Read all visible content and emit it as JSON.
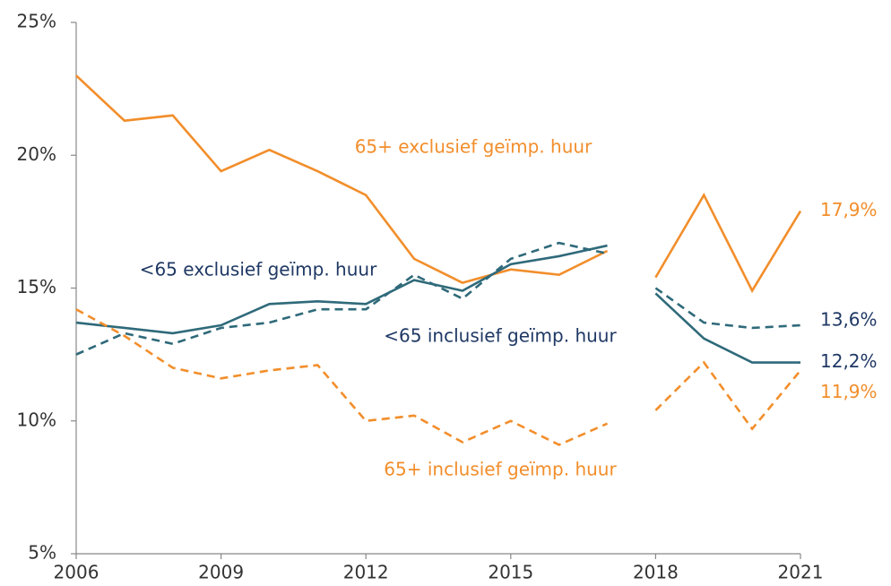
{
  "chart_data": {
    "type": "line",
    "x": [
      2006,
      2007,
      2008,
      2009,
      2010,
      2011,
      2012,
      2013,
      2014,
      2015,
      2016,
      2017,
      2018,
      2019,
      2020,
      2021
    ],
    "break_after": 2017,
    "xlim": [
      2006,
      2021
    ],
    "xticks": [
      2006,
      2009,
      2012,
      2015,
      2018,
      2021
    ],
    "ylim": [
      5,
      25
    ],
    "yticks": [
      {
        "value": 5,
        "label": "5%"
      },
      {
        "value": 10,
        "label": "10%"
      },
      {
        "value": 15,
        "label": "15%"
      },
      {
        "value": 20,
        "label": "20%"
      },
      {
        "value": 25,
        "label": "25%"
      }
    ],
    "series": [
      {
        "name": "65+ exclusief geïmp. huur",
        "color": "#f28e2b",
        "dash": false,
        "label_color": "#f28e2b",
        "values": [
          23.0,
          21.3,
          21.5,
          19.4,
          20.2,
          19.4,
          18.5,
          16.1,
          15.2,
          15.7,
          15.5,
          16.4,
          15.4,
          18.5,
          14.9,
          17.9
        ],
        "value_labels": [
          null,
          null,
          null,
          null,
          null,
          null,
          null,
          null,
          null,
          null,
          null,
          null,
          null,
          null,
          null,
          "17,9%"
        ]
      },
      {
        "name": "<65 exclusief geïmp. huur",
        "color": "#2f6a7a",
        "dash": false,
        "label_color": "#1f3864",
        "values": [
          13.7,
          13.5,
          13.3,
          13.6,
          14.4,
          14.5,
          14.4,
          15.3,
          14.9,
          15.9,
          16.2,
          16.6,
          14.8,
          13.1,
          12.2,
          12.2
        ],
        "value_labels": [
          null,
          null,
          null,
          null,
          null,
          null,
          null,
          null,
          null,
          null,
          null,
          null,
          null,
          null,
          null,
          "12,2%"
        ]
      },
      {
        "name": "<65 inclusief geïmp. huur",
        "color": "#2f6a7a",
        "dash": true,
        "label_color": "#1f3864",
        "values": [
          12.5,
          13.3,
          12.9,
          13.5,
          13.7,
          14.2,
          14.2,
          15.5,
          14.6,
          16.1,
          16.7,
          16.3,
          15.0,
          13.7,
          13.5,
          13.6
        ],
        "value_labels": [
          null,
          null,
          null,
          null,
          null,
          null,
          null,
          null,
          null,
          null,
          null,
          null,
          null,
          null,
          null,
          "13,6%"
        ]
      },
      {
        "name": "65+ inclusief geïmp. huur",
        "color": "#f28e2b",
        "dash": true,
        "label_color": "#f28e2b",
        "values": [
          14.2,
          13.2,
          12.0,
          11.6,
          11.9,
          12.1,
          10.0,
          10.2,
          9.2,
          10.0,
          9.1,
          9.9,
          10.4,
          12.2,
          9.7,
          11.9
        ],
        "value_labels": [
          null,
          null,
          null,
          null,
          null,
          null,
          null,
          null,
          null,
          null,
          null,
          null,
          null,
          null,
          null,
          "11,9%"
        ]
      }
    ]
  }
}
